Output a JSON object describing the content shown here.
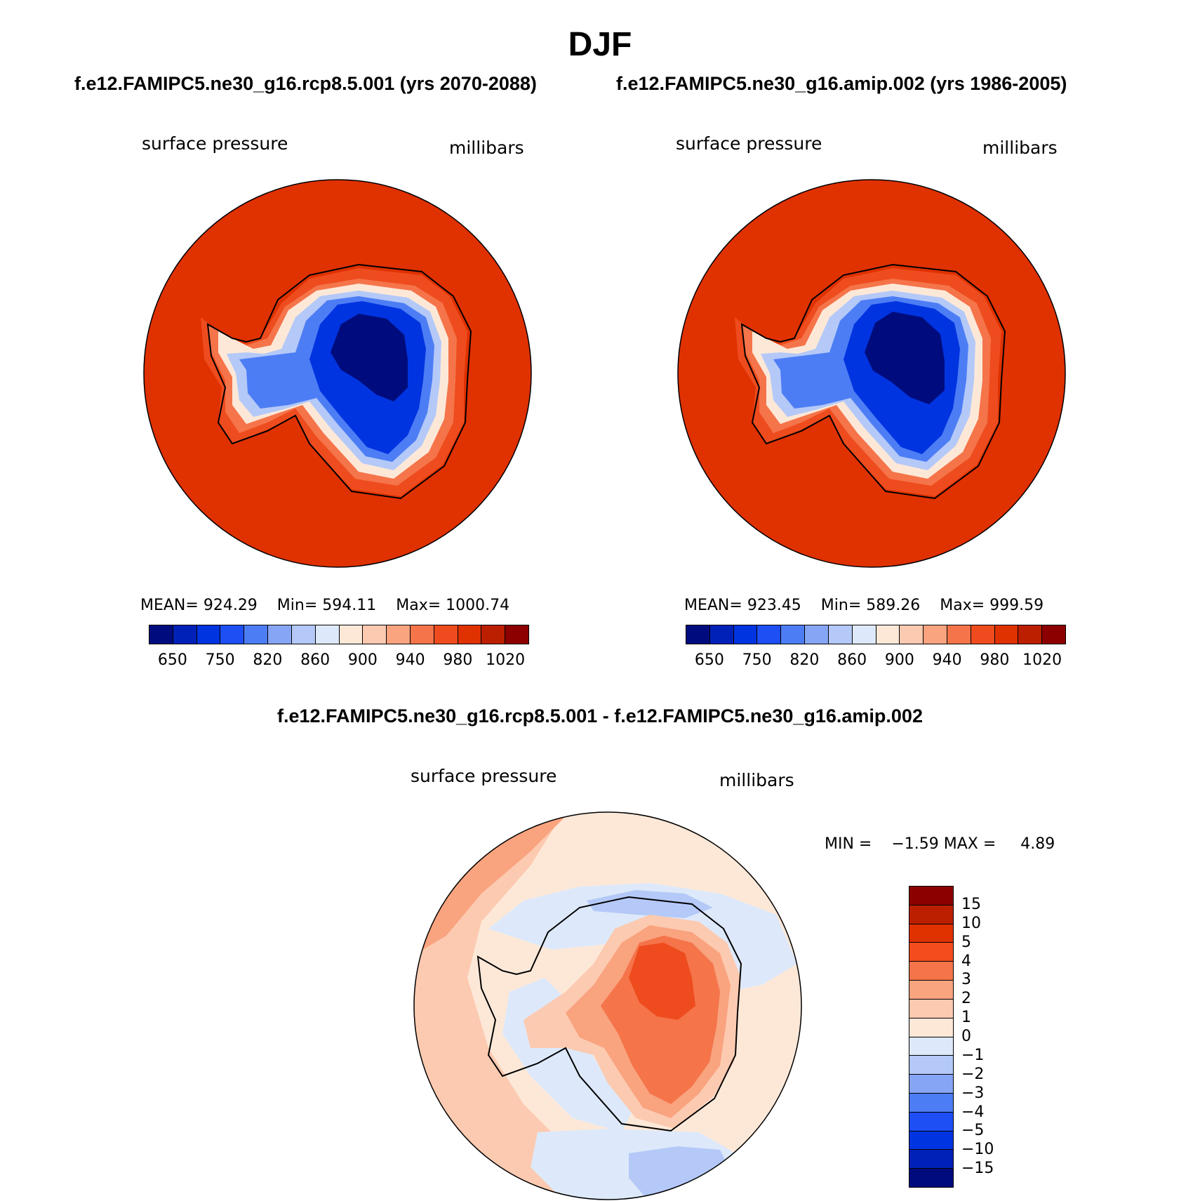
{
  "title": "DJF",
  "panels": [
    {
      "case": "f.e12.FAMIPC5.ne30_g16.rcp8.5.001 (yrs 2070-2088)",
      "variable": "surface pressure",
      "units": "millibars",
      "stats": {
        "mean_label": "MEAN=",
        "mean": "924.29",
        "min_label": "Min=",
        "min": "594.11",
        "max_label": "Max=",
        "max": "1000.74"
      },
      "colorbar_ticks": [
        "650",
        "750",
        "820",
        "860",
        "900",
        "940",
        "980",
        "1020"
      ]
    },
    {
      "case": "f.e12.FAMIPC5.ne30_g16.amip.002 (yrs 1986-2005)",
      "variable": "surface pressure",
      "units": "millibars",
      "stats": {
        "mean_label": "MEAN=",
        "mean": "923.45",
        "min_label": "Min=",
        "min": "589.26",
        "max_label": "Max=",
        "max": "999.59"
      },
      "colorbar_ticks": [
        "650",
        "750",
        "820",
        "860",
        "900",
        "940",
        "980",
        "1020"
      ]
    }
  ],
  "diff": {
    "case": "f.e12.FAMIPC5.ne30_g16.rcp8.5.001 - f.e12.FAMIPC5.ne30_g16.amip.002",
    "variable": "surface pressure",
    "units": "millibars",
    "stats": {
      "min_label": "MIN =",
      "min": "−1.59",
      "max_label": "MAX =",
      "max": "4.89"
    },
    "colorbar_ticks": [
      "15",
      "10",
      "5",
      "4",
      "3",
      "2",
      "1",
      "0",
      "−1",
      "−2",
      "−3",
      "−4",
      "−5",
      "−10",
      "−15"
    ]
  },
  "colors": {
    "abs_scale": [
      "#000c7d",
      "#0021b8",
      "#0034e0",
      "#1e4ff5",
      "#4d7df5",
      "#86a6f5",
      "#b4c9f8",
      "#dde9fa",
      "#fde8d8",
      "#fccab0",
      "#f9a37f",
      "#f5744a",
      "#ee4c1e",
      "#e03100",
      "#bc1f00",
      "#8c0000"
    ],
    "diff_scale": [
      "#8c0000",
      "#bc1f00",
      "#e03100",
      "#f54c1e",
      "#f5744a",
      "#f9a37f",
      "#fccab0",
      "#fde8d8",
      "#dde9fa",
      "#b4c9f8",
      "#86a6f5",
      "#4d7df5",
      "#1e4ff5",
      "#0034e0",
      "#0021b8",
      "#000c7d"
    ]
  }
}
